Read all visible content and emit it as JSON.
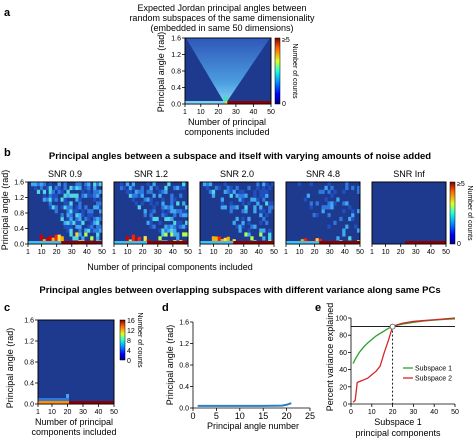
{
  "panels": {
    "a": {
      "letter": "a",
      "title_lines": [
        "Expected Jordan principal angles between",
        "random subspaces of the same dimensionality",
        "(embedded in same 50 dimensions)"
      ],
      "ylabel": "Principal angle (rad)",
      "xlabel_lines": [
        "Number of principal",
        "components included"
      ],
      "xticks": [
        "1",
        "10",
        "20",
        "30",
        "40",
        "50"
      ],
      "yticks": [
        "0.0",
        "0.4",
        "0.8",
        "1.2",
        "1.6"
      ],
      "cbar_label": "Number of counts",
      "cbar_top": "≥5",
      "cbar_bottom": "0"
    },
    "b": {
      "letter": "b",
      "title": "Principal angles between a subspace and itself with varying amounts of noise added",
      "ylabel": "Principal angle (rad)",
      "xlabel": "Number of principal components included",
      "xticks": [
        "1",
        "10",
        "20",
        "30",
        "40",
        "50"
      ],
      "yticks": [
        "0.0",
        "0.4",
        "0.8",
        "1.2",
        "1.6"
      ],
      "snr_titles": [
        "SNR 0.9",
        "SNR 1.2",
        "SNR 2.0",
        "SNR 4.8",
        "SNR Inf"
      ],
      "cbar_label": "Number of counts",
      "cbar_top": "≥5",
      "cbar_bottom": "0"
    },
    "c_title": "Principal angles between overlapping subspaces with different variance along same PCs",
    "c": {
      "letter": "c",
      "ylabel": "Principal angle (rad)",
      "xlabel_lines": [
        "Number of principal",
        "components included"
      ],
      "xticks": [
        "1",
        "10",
        "20",
        "30",
        "40",
        "50"
      ],
      "yticks": [
        "0.0",
        "0.4",
        "0.8",
        "1.2",
        "1.6"
      ],
      "cbar_label": "Number of counts",
      "cbar_ticks": [
        "16",
        "12",
        "8",
        "4",
        "0"
      ]
    },
    "d": {
      "letter": "d",
      "ylabel": "Principal angle (rad)",
      "xlabel": "Principal angle number",
      "xticks": [
        "0",
        "5",
        "10",
        "15",
        "20",
        "25"
      ],
      "yticks": [
        "0.0",
        "0.4",
        "0.8",
        "1.2",
        "1.6"
      ]
    },
    "e": {
      "letter": "e",
      "ylabel": "Percent variance explained",
      "xlabel_lines": [
        "Subspace 1",
        "principal components"
      ],
      "xticks": [
        "0",
        "10",
        "20",
        "30",
        "40",
        "50"
      ],
      "yticks": [
        "0",
        "20",
        "40",
        "60",
        "80",
        "100"
      ],
      "legend": [
        "Subspace 1",
        "Subspace 2"
      ]
    }
  },
  "colors": {
    "heat_bg": "#1e3a8f",
    "series1": "#2ca02c",
    "series2": "#d62728",
    "line_d": "#2a7fc4"
  },
  "chart_data": [
    {
      "type": "heatmap",
      "panel": "a",
      "xlim": [
        1,
        50
      ],
      "ylim": [
        0,
        1.6
      ],
      "description_values": {
        "horizontal_line_rad": 0.0,
        "band_start_pc": 25
      }
    },
    {
      "type": "heatmap",
      "panel": "b",
      "xlim": [
        1,
        50
      ],
      "ylim": [
        0,
        1.6
      ],
      "series": [
        {
          "name": "SNR 0.9"
        },
        {
          "name": "SNR 1.2"
        },
        {
          "name": "SNR 2.0"
        },
        {
          "name": "SNR 4.8"
        },
        {
          "name": "SNR Inf"
        }
      ]
    },
    {
      "type": "heatmap",
      "panel": "c",
      "xlim": [
        1,
        50
      ],
      "ylim": [
        0,
        1.6
      ]
    },
    {
      "type": "line",
      "panel": "d",
      "x": [
        1,
        5,
        10,
        15,
        19,
        20,
        21
      ],
      "values": [
        0.04,
        0.04,
        0.04,
        0.04,
        0.045,
        0.06,
        0.09
      ],
      "xlim": [
        0,
        25
      ],
      "ylim": [
        0,
        1.6
      ]
    },
    {
      "type": "line",
      "panel": "e",
      "x": [
        1,
        2,
        3,
        4,
        5,
        6,
        8,
        10,
        12,
        14,
        16,
        18,
        20,
        22,
        25,
        30,
        35,
        40,
        45,
        50
      ],
      "series": [
        {
          "name": "Subspace 1",
          "values": [
            47,
            52,
            56,
            60,
            63,
            66,
            71,
            75,
            79,
            82,
            85,
            88,
            90,
            91.5,
            93,
            95,
            96.5,
            97.5,
            98.5,
            99
          ]
        },
        {
          "name": "Subspace 2",
          "values": [
            2,
            4,
            25,
            26,
            27,
            28,
            30,
            34,
            38,
            44,
            60,
            74,
            90,
            92,
            94,
            96,
            97,
            98,
            99,
            100
          ]
        }
      ],
      "hline": 90,
      "vline_x": 20,
      "xlim": [
        0,
        50
      ],
      "ylim": [
        0,
        100
      ]
    }
  ]
}
